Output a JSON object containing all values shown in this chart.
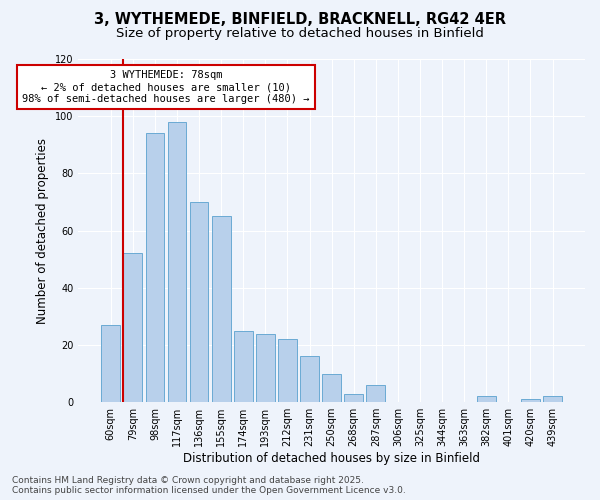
{
  "title_line1": "3, WYTHEMEDE, BINFIELD, BRACKNELL, RG42 4ER",
  "title_line2": "Size of property relative to detached houses in Binfield",
  "xlabel": "Distribution of detached houses by size in Binfield",
  "ylabel": "Number of detached properties",
  "categories": [
    "60sqm",
    "79sqm",
    "98sqm",
    "117sqm",
    "136sqm",
    "155sqm",
    "174sqm",
    "193sqm",
    "212sqm",
    "231sqm",
    "250sqm",
    "268sqm",
    "287sqm",
    "306sqm",
    "325sqm",
    "344sqm",
    "363sqm",
    "382sqm",
    "401sqm",
    "420sqm",
    "439sqm"
  ],
  "values": [
    27,
    52,
    94,
    98,
    70,
    65,
    25,
    24,
    22,
    16,
    10,
    3,
    6,
    0,
    0,
    0,
    0,
    2,
    0,
    1,
    2
  ],
  "bar_color": "#b8d0eb",
  "bar_edge_color": "#6aaad4",
  "background_color": "#eef3fb",
  "vline_color": "#cc0000",
  "vline_x_index": 1,
  "annotation_text": "3 WYTHEMEDE: 78sqm\n← 2% of detached houses are smaller (10)\n98% of semi-detached houses are larger (480) →",
  "annotation_box_facecolor": "#ffffff",
  "annotation_box_edgecolor": "#cc0000",
  "ylim": [
    0,
    120
  ],
  "yticks": [
    0,
    20,
    40,
    60,
    80,
    100,
    120
  ],
  "footer": "Contains HM Land Registry data © Crown copyright and database right 2025.\nContains public sector information licensed under the Open Government Licence v3.0.",
  "title_fontsize": 10.5,
  "subtitle_fontsize": 9.5,
  "axis_label_fontsize": 8.5,
  "tick_fontsize": 7,
  "annotation_fontsize": 7.5,
  "footer_fontsize": 6.5
}
